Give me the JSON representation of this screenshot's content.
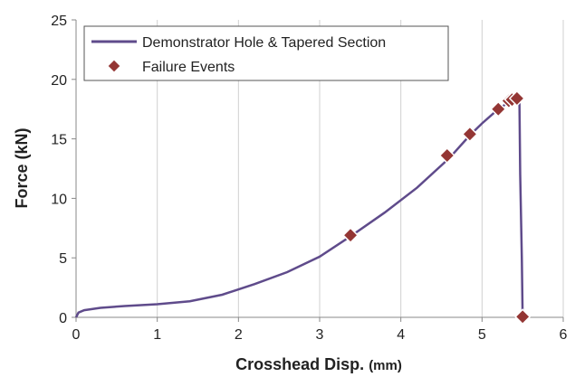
{
  "chart_data": {
    "type": "line",
    "xlabel": "Crosshead Disp.",
    "xunit": "(mm)",
    "ylabel": "Force (kN)",
    "xlim": [
      0,
      6
    ],
    "xticks": [
      0,
      1,
      2,
      3,
      4,
      5,
      6
    ],
    "ylim": [
      0,
      25
    ],
    "yticks": [
      0,
      5,
      10,
      15,
      20,
      25
    ],
    "xgrid": true,
    "legend": "upper-left",
    "series": [
      {
        "name": "Demonstrator Hole & Tapered Section",
        "type": "line",
        "color": "#5f4b8b",
        "x": [
          0,
          0.03,
          0.1,
          0.3,
          0.6,
          1.0,
          1.4,
          1.8,
          2.2,
          2.6,
          3.0,
          3.4,
          3.8,
          4.2,
          4.6,
          4.85,
          5.0,
          5.2,
          5.4,
          5.46,
          5.47,
          5.49,
          5.5
        ],
        "values": [
          0,
          0.4,
          0.6,
          0.8,
          0.95,
          1.1,
          1.35,
          1.9,
          2.8,
          3.8,
          5.1,
          6.9,
          8.8,
          10.9,
          13.4,
          15.3,
          16.3,
          17.5,
          18.4,
          18.5,
          12,
          5,
          0
        ]
      },
      {
        "name": "Failure Events",
        "type": "scatter",
        "color": "#943634",
        "x": [
          3.38,
          4.57,
          4.85,
          5.2,
          5.33,
          5.37,
          5.43,
          5.5
        ],
        "values": [
          6.9,
          13.6,
          15.4,
          17.5,
          18.2,
          18.3,
          18.4,
          0.05
        ]
      }
    ]
  }
}
